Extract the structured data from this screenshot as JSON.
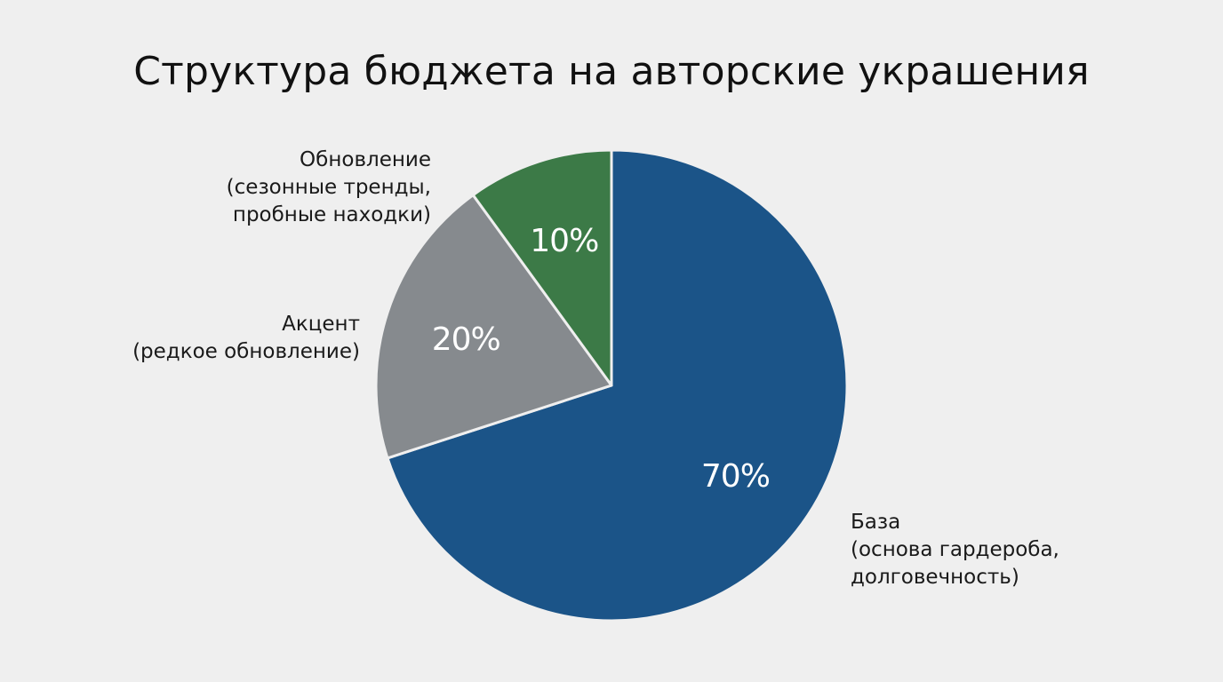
{
  "chart_data": {
    "type": "pie",
    "title": "Структура бюджета на авторские украшения",
    "start_angle_deg": 0,
    "direction": "clockwise",
    "slices": [
      {
        "name": "База",
        "description": "(основа гардероба, долговечность)",
        "label_lines": [
          "База",
          "(основа гардероба,",
          "долговечность)"
        ],
        "value": 70,
        "display": "70%",
        "color": "#1b5488"
      },
      {
        "name": "Акцент",
        "description": "(редкое обновление)",
        "label_lines": [
          "Акцент",
          "(редкое обновление)"
        ],
        "value": 20,
        "display": "20%",
        "color": "#868a8e"
      },
      {
        "name": "Обновление",
        "description": "(сезонные тренды, пробные находки)",
        "label_lines": [
          "Обновление",
          "(сезонные тренды,",
          "пробные находки)"
        ],
        "value": 10,
        "display": "10%",
        "color": "#3c7a47"
      }
    ],
    "slice_border_color": "#efefef",
    "legend": "none"
  }
}
